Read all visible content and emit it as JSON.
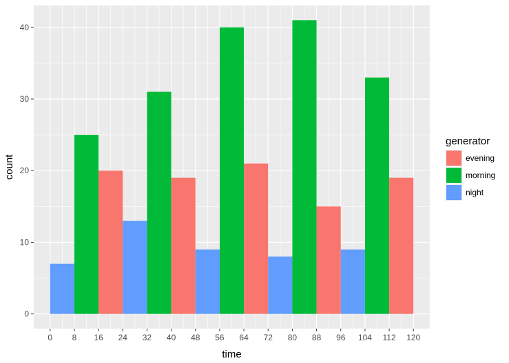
{
  "chart_data": {
    "type": "bar",
    "xlabel": "time",
    "ylabel": "count",
    "x_ticks": [
      0,
      8,
      16,
      24,
      32,
      40,
      48,
      56,
      64,
      72,
      80,
      88,
      96,
      104,
      112,
      120
    ],
    "y_ticks": [
      0,
      10,
      20,
      30,
      40
    ],
    "ylim": [
      0,
      41
    ],
    "xlim": [
      0,
      120
    ],
    "legend": {
      "title": "generator",
      "position": "right",
      "entries": [
        "evening",
        "morning",
        "night"
      ]
    },
    "colors": {
      "evening": "#F8766D",
      "morning": "#00BA38",
      "night": "#619CFF",
      "panel": "#EBEBEB",
      "grid": "#FFFFFF"
    },
    "bars": [
      {
        "group": "night",
        "x_start": 0,
        "x_end": 8,
        "value": 7
      },
      {
        "group": "morning",
        "x_start": 8,
        "x_end": 16,
        "value": 25
      },
      {
        "group": "evening",
        "x_start": 16,
        "x_end": 24,
        "value": 20
      },
      {
        "group": "night",
        "x_start": 24,
        "x_end": 32,
        "value": 13
      },
      {
        "group": "morning",
        "x_start": 32,
        "x_end": 40,
        "value": 31
      },
      {
        "group": "evening",
        "x_start": 40,
        "x_end": 48,
        "value": 19
      },
      {
        "group": "night",
        "x_start": 48,
        "x_end": 56,
        "value": 9
      },
      {
        "group": "morning",
        "x_start": 56,
        "x_end": 64,
        "value": 40
      },
      {
        "group": "evening",
        "x_start": 64,
        "x_end": 72,
        "value": 21
      },
      {
        "group": "night",
        "x_start": 72,
        "x_end": 80,
        "value": 8
      },
      {
        "group": "morning",
        "x_start": 80,
        "x_end": 88,
        "value": 41
      },
      {
        "group": "evening",
        "x_start": 88,
        "x_end": 96,
        "value": 15
      },
      {
        "group": "night",
        "x_start": 96,
        "x_end": 104,
        "value": 9
      },
      {
        "group": "morning",
        "x_start": 104,
        "x_end": 112,
        "value": 33
      },
      {
        "group": "evening",
        "x_start": 112,
        "x_end": 120,
        "value": 19
      }
    ]
  }
}
